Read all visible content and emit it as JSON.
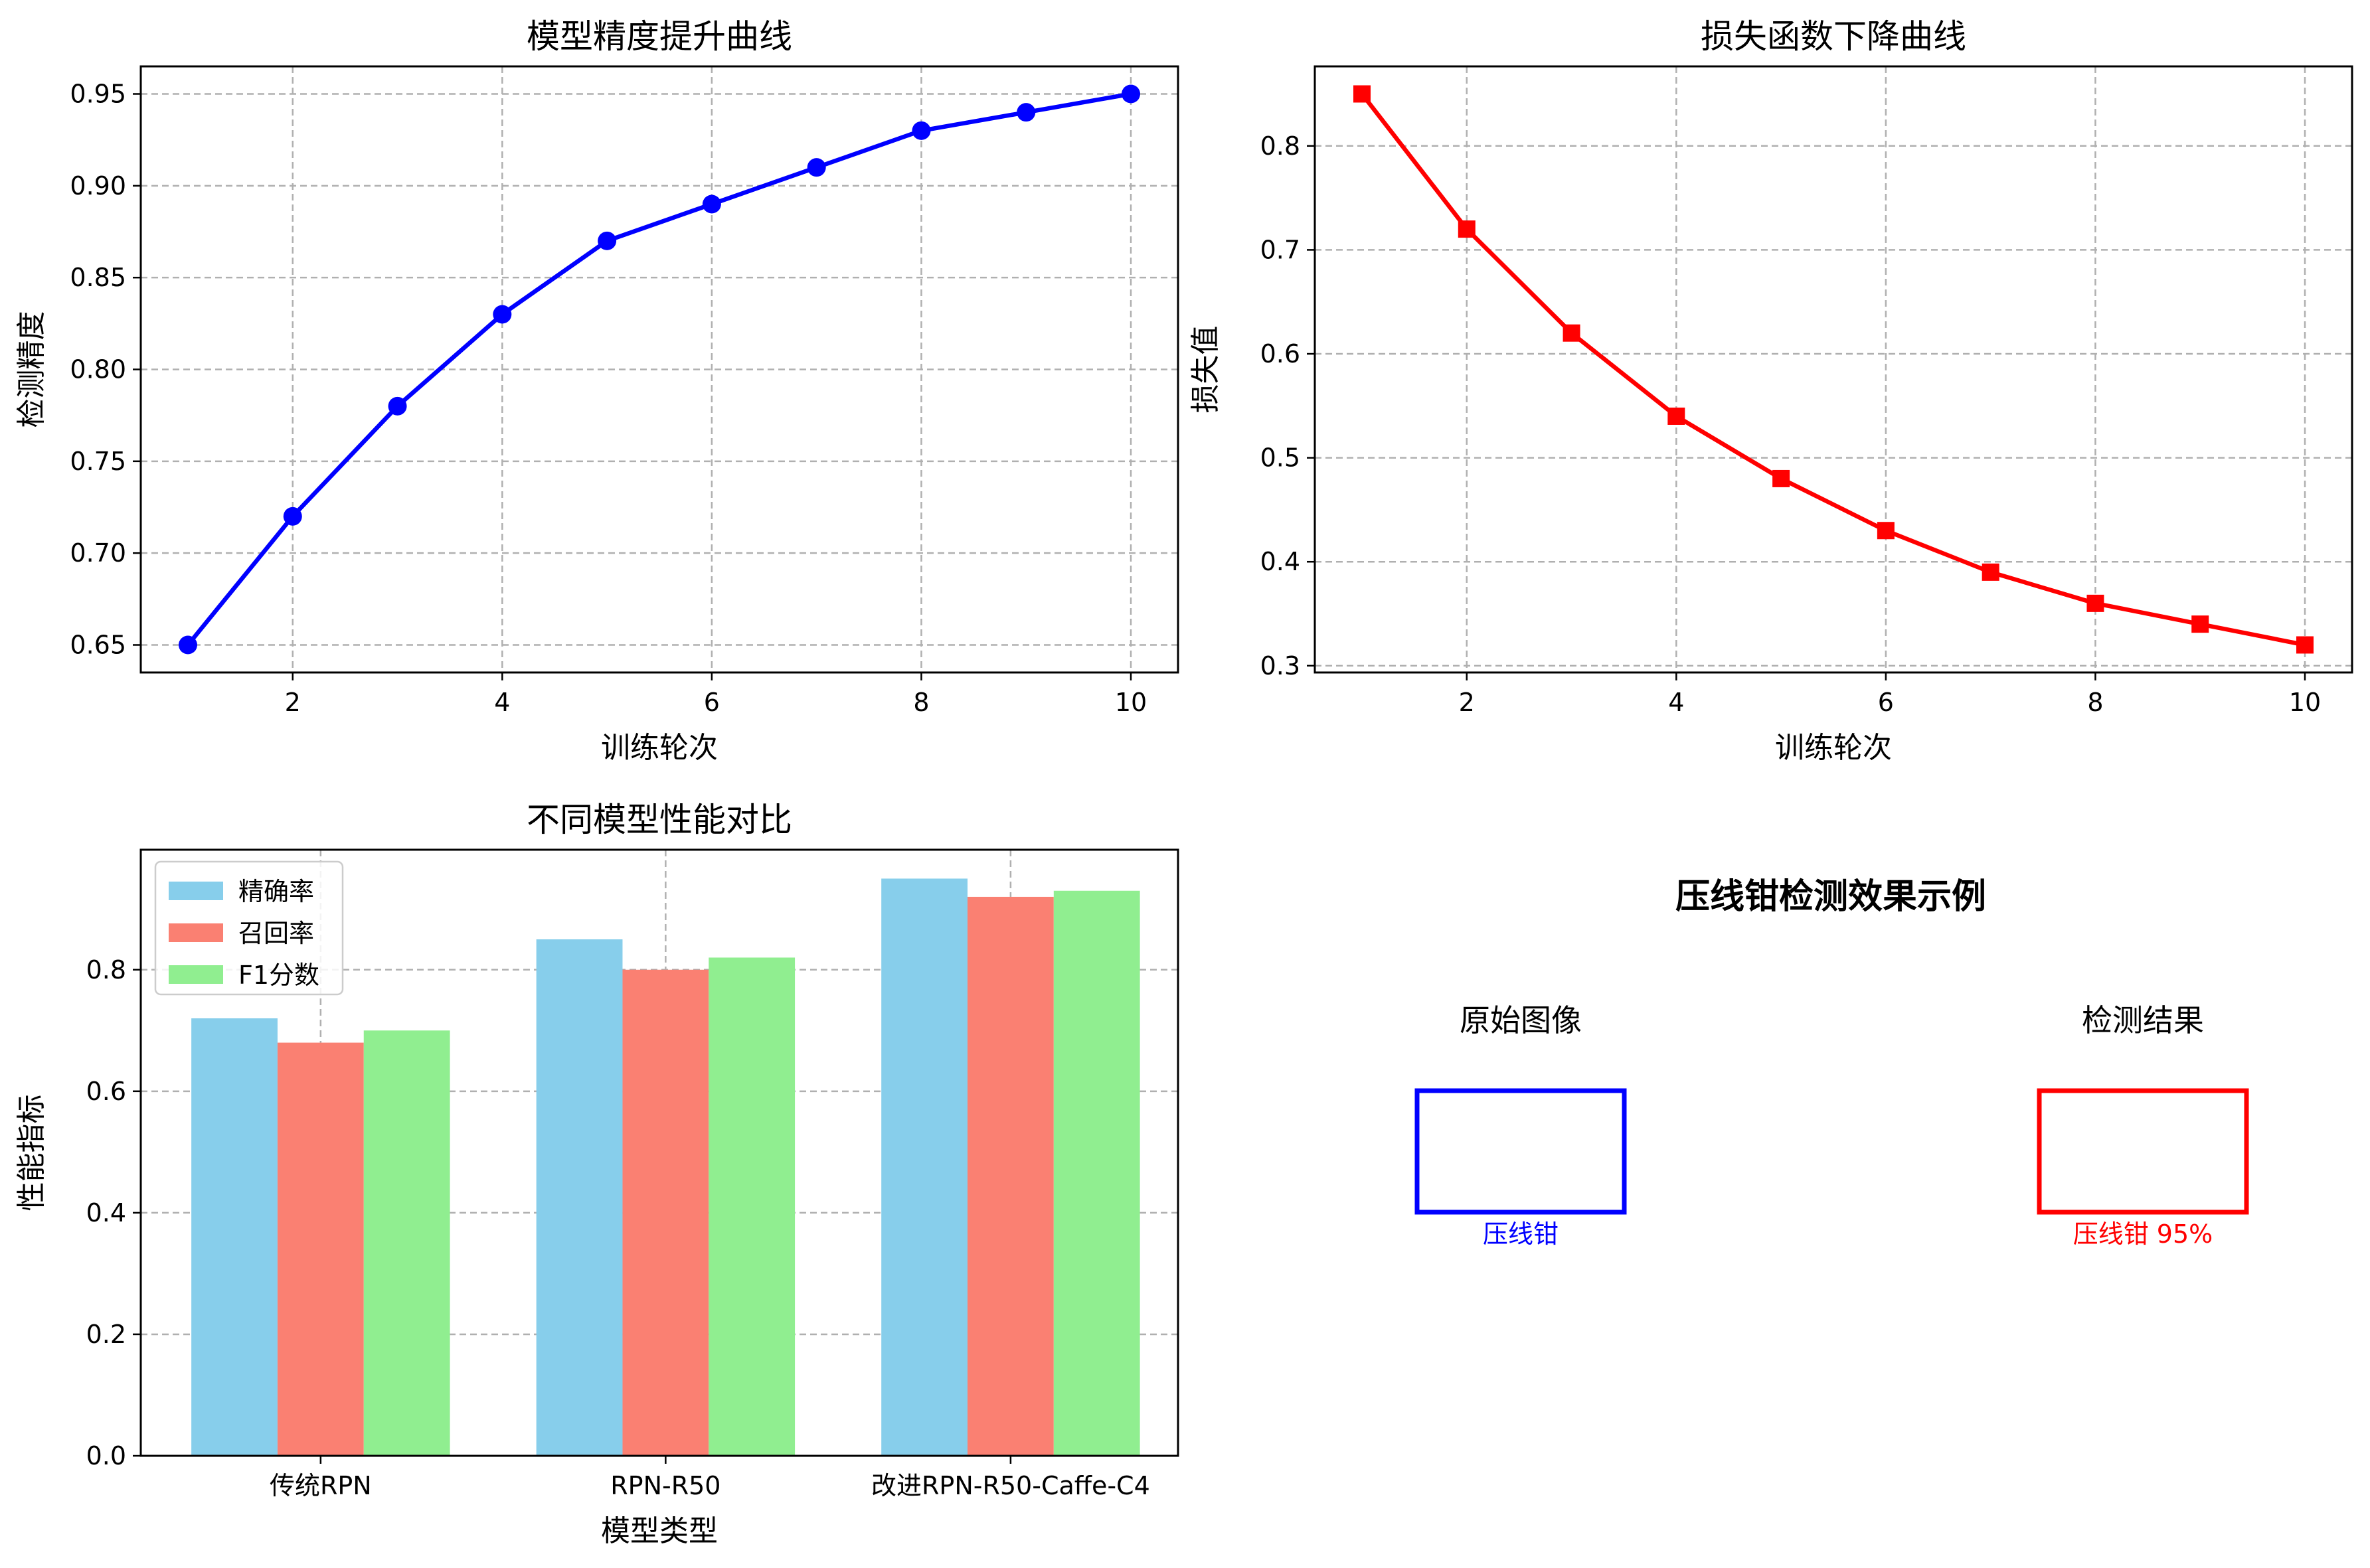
{
  "chart_data": [
    {
      "type": "line",
      "title": "模型精度提升曲线",
      "xlabel": "训练轮次",
      "ylabel": "检测精度",
      "x": [
        1,
        2,
        3,
        4,
        5,
        6,
        7,
        8,
        9,
        10
      ],
      "series": [
        {
          "values": [
            0.65,
            0.72,
            0.78,
            0.83,
            0.87,
            0.89,
            0.91,
            0.93,
            0.94,
            0.95
          ],
          "color": "#0000ff",
          "marker": "circle"
        }
      ],
      "xlim": [
        0.55,
        10.45
      ],
      "ylim": [
        0.635,
        0.965
      ],
      "xticks": [
        2,
        4,
        6,
        8,
        10
      ],
      "xtick_labels": [
        "2",
        "4",
        "6",
        "8",
        "10"
      ],
      "yticks": [
        0.65,
        0.7,
        0.75,
        0.8,
        0.85,
        0.9,
        0.95
      ],
      "ytick_labels": [
        "0.65",
        "0.70",
        "0.75",
        "0.80",
        "0.85",
        "0.90",
        "0.95"
      ],
      "grid": true
    },
    {
      "type": "line",
      "title": "损失函数下降曲线",
      "xlabel": "训练轮次",
      "ylabel": "损失值",
      "x": [
        1,
        2,
        3,
        4,
        5,
        6,
        7,
        8,
        9,
        10
      ],
      "series": [
        {
          "values": [
            0.85,
            0.72,
            0.62,
            0.54,
            0.48,
            0.43,
            0.39,
            0.36,
            0.34,
            0.32
          ],
          "color": "#ff0000",
          "marker": "square"
        }
      ],
      "xlim": [
        0.55,
        10.45
      ],
      "ylim": [
        0.2935,
        0.8765
      ],
      "xticks": [
        2,
        4,
        6,
        8,
        10
      ],
      "xtick_labels": [
        "2",
        "4",
        "6",
        "8",
        "10"
      ],
      "yticks": [
        0.3,
        0.4,
        0.5,
        0.6,
        0.7,
        0.8
      ],
      "ytick_labels": [
        "0.3",
        "0.4",
        "0.5",
        "0.6",
        "0.7",
        "0.8"
      ],
      "grid": true
    },
    {
      "type": "bar",
      "title": "不同模型性能对比",
      "xlabel": "模型类型",
      "ylabel": "性能指标",
      "categories": [
        "传统RPN",
        "RPN-R50",
        "改进RPN-R50-Caffe-C4"
      ],
      "series": [
        {
          "name": "精确率",
          "values": [
            0.72,
            0.85,
            0.95
          ],
          "color": "#87ceeb"
        },
        {
          "name": "召回率",
          "values": [
            0.68,
            0.8,
            0.92
          ],
          "color": "#fa8072"
        },
        {
          "name": "F1分数",
          "values": [
            0.7,
            0.82,
            0.93
          ],
          "color": "#90ee90"
        }
      ],
      "ylim": [
        0,
        0.9975
      ],
      "yticks": [
        0.0,
        0.2,
        0.4,
        0.6,
        0.8
      ],
      "ytick_labels": [
        "0.0",
        "0.2",
        "0.4",
        "0.6",
        "0.8"
      ],
      "legend": "upper-left",
      "grid": true
    }
  ],
  "example_panel": {
    "title": "压线钳检测效果示例",
    "original": {
      "heading": "原始图像",
      "box_label": "压线钳",
      "color": "#0000ff"
    },
    "detected": {
      "heading": "检测结果",
      "box_label": "压线钳 95%",
      "color": "#ff0000"
    }
  }
}
